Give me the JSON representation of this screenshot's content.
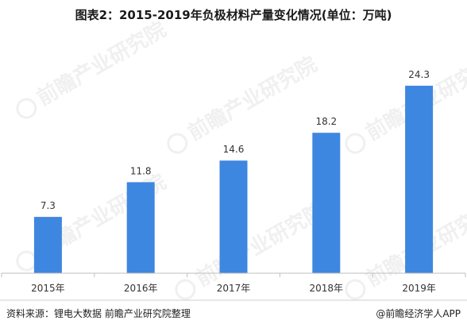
{
  "title": "图表2：2015-2019年负极材料产量变化情况(单位：万吨)",
  "watermark": "前瞻产业研究院",
  "footer": {
    "source": "资料来源：锂电大数据 前瞻产业研究院整理",
    "brand": "@前瞻经济学人APP"
  },
  "colors": {
    "bar": "#3e87e0",
    "axis": "#bfbfbf",
    "label": "#333333"
  },
  "chart_data": {
    "type": "bar",
    "title": "图表2：2015-2019年负极材料产量变化情况(单位：万吨)",
    "categories": [
      "2015年",
      "2016年",
      "2017年",
      "2018年",
      "2019年"
    ],
    "values": [
      7.3,
      11.8,
      14.6,
      18.2,
      24.3
    ],
    "xlabel": "",
    "ylabel": "",
    "ylim": [
      0,
      28
    ],
    "grid": false,
    "legend": "none"
  }
}
